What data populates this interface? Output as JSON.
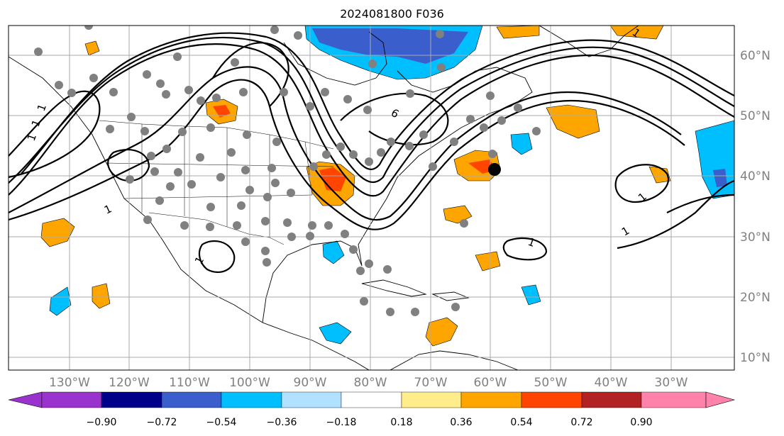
{
  "title": "2024081800 F036",
  "lon_labels": [
    "130°W",
    "120°W",
    "110°W",
    "100°W",
    "90°W",
    "80°W",
    "70°W",
    "60°W",
    "50°W",
    "40°W",
    "30°W"
  ],
  "lat_labels": [
    "60°N",
    "50°N",
    "40°N",
    "30°N",
    "20°N",
    "10°N"
  ],
  "contour_labels": [
    "1",
    "1",
    "1",
    "1",
    "1",
    "1",
    "1",
    "1",
    "6",
    "1"
  ],
  "colorbar": {
    "ticks": [
      "−0.90",
      "−0.72",
      "−0.54",
      "−0.36",
      "−0.18",
      "0.18",
      "0.36",
      "0.54",
      "0.72",
      "0.90"
    ],
    "colors": [
      "#9a32cd",
      "#00008b",
      "#3a5fcd",
      "#00bfff",
      "#b0e2ff",
      "#ffffff",
      "#ffec8b",
      "#ffa500",
      "#ff4500",
      "#b22222",
      "#ff82ab"
    ]
  },
  "colors": {
    "grid": "#aaaaaa",
    "axis_label": "#808080",
    "station_dot": "#808080",
    "marker": "#000000"
  }
}
